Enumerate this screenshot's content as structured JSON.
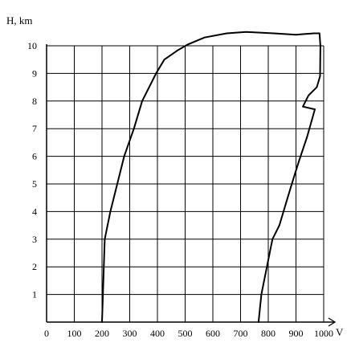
{
  "chart_data": {
    "type": "line",
    "title": "",
    "xlabel": "V",
    "ylabel": "H, km",
    "xlim": [
      0,
      1000
    ],
    "ylim": [
      0,
      10
    ],
    "x_ticks": [
      "0",
      "100",
      "200",
      "300",
      "400",
      "500",
      "600",
      "700",
      "800",
      "900",
      "1000"
    ],
    "y_ticks": [
      "1",
      "2",
      "3",
      "4",
      "5",
      "6",
      "7",
      "8",
      "9",
      "10"
    ],
    "grid": true,
    "legend": "none",
    "line_color": "#000000",
    "series": [
      {
        "points": [
          [
            200,
            0
          ],
          [
            205,
            1.5
          ],
          [
            210,
            3
          ],
          [
            230,
            4
          ],
          [
            255,
            5
          ],
          [
            280,
            6
          ],
          [
            315,
            7
          ],
          [
            345,
            8
          ],
          [
            395,
            9
          ],
          [
            425,
            9.5
          ],
          [
            475,
            9.85
          ],
          [
            510,
            10.05
          ],
          [
            570,
            10.3
          ],
          [
            650,
            10.45
          ],
          [
            720,
            10.5
          ],
          [
            820,
            10.45
          ],
          [
            900,
            10.4
          ],
          [
            965,
            10.45
          ],
          [
            985,
            10.45
          ],
          [
            988,
            10
          ],
          [
            987,
            8.9
          ],
          [
            975,
            8.5
          ],
          [
            945,
            8.2
          ],
          [
            925,
            7.8
          ],
          [
            968,
            7.7
          ],
          [
            940,
            6.7
          ],
          [
            910,
            5.8
          ],
          [
            885,
            5
          ],
          [
            870,
            4.5
          ],
          [
            840,
            3.5
          ],
          [
            815,
            3
          ],
          [
            795,
            2
          ],
          [
            775,
            1
          ],
          [
            765,
            0
          ]
        ]
      }
    ]
  }
}
